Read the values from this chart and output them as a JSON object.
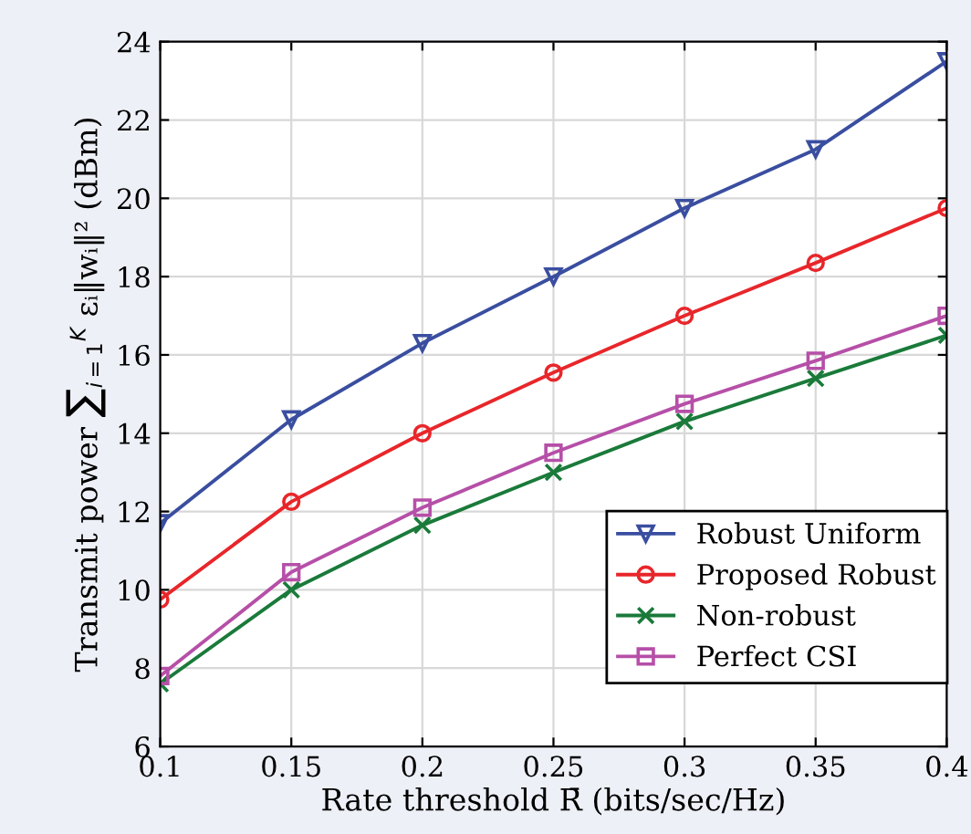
{
  "chart_data": {
    "type": "line",
    "xlabel": "Rate threshold R̄ (bits/sec/Hz)",
    "ylabel": "Transmit power ∑$_{i=1}$$^{K}$ εᵢ‖wᵢ‖² (dBm)",
    "x": [
      0.1,
      0.15,
      0.2,
      0.25,
      0.3,
      0.35,
      0.4
    ],
    "series": [
      {
        "name": "Robust Uniform",
        "color": "#3a4ea0",
        "marker": "triangle",
        "values": [
          11.7,
          14.35,
          16.3,
          18.0,
          19.75,
          21.25,
          23.5
        ]
      },
      {
        "name": "Proposed Robust",
        "color": "#e8262a",
        "marker": "circle",
        "values": [
          9.75,
          12.25,
          14.0,
          15.55,
          17.0,
          18.35,
          19.75
        ]
      },
      {
        "name": "Non-robust",
        "color": "#1a7a3a",
        "marker": "cross",
        "values": [
          7.6,
          10.0,
          11.65,
          13.0,
          14.3,
          15.4,
          16.5
        ]
      },
      {
        "name": "Perfect CSI",
        "color": "#b64fa8",
        "marker": "square",
        "values": [
          7.8,
          10.45,
          12.1,
          13.5,
          14.75,
          15.85,
          17.0
        ]
      }
    ],
    "xlim": [
      0.1,
      0.4
    ],
    "xticks": [
      0.1,
      0.15,
      0.2,
      0.25,
      0.3,
      0.35,
      0.4
    ],
    "ylim": [
      6,
      24
    ],
    "yticks": [
      6,
      8,
      10,
      12,
      14,
      16,
      18,
      20,
      22,
      24
    ],
    "grid": true,
    "legend": "bottom right",
    "line_style": "solid"
  }
}
